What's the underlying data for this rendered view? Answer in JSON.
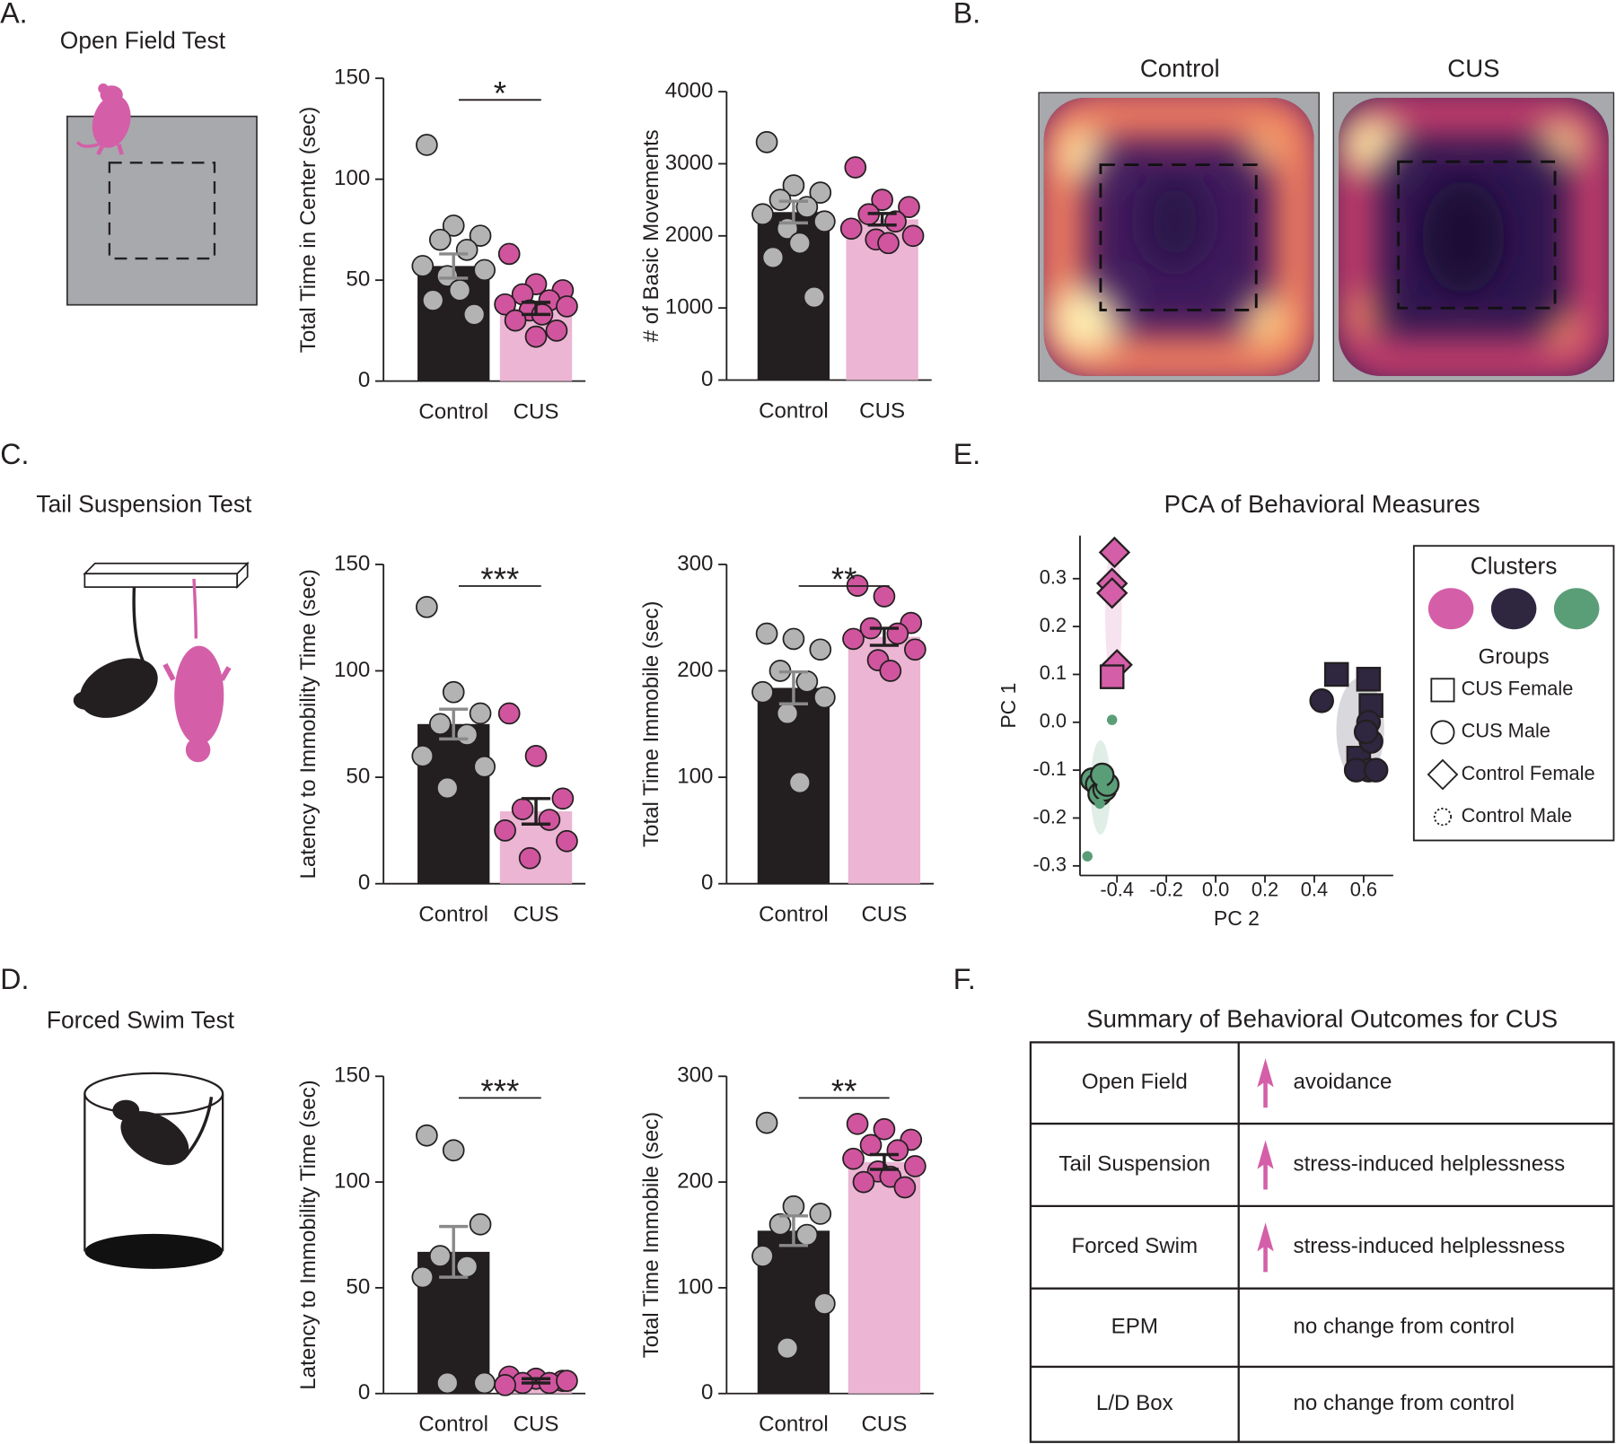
{
  "panels": {
    "labels": [
      "A.",
      "B.",
      "C.",
      "D.",
      "E.",
      "F."
    ],
    "tests": [
      "Open Field Test",
      "Tail Suspension Test",
      "Forced Swim Test"
    ]
  },
  "heatmaps": {
    "titles": [
      "Control",
      "CUS"
    ]
  },
  "chart_data": [
    {
      "type": "bar",
      "ylabel": "Total Time in Center (sec)",
      "categories": [
        "Control",
        "CUS"
      ],
      "values": [
        57,
        36
      ],
      "errors": [
        6,
        3
      ],
      "points": [
        [
          117,
          77,
          72,
          70,
          65,
          57,
          55,
          52,
          45,
          40,
          33
        ],
        [
          63,
          48,
          45,
          43,
          40,
          38,
          37,
          35,
          33,
          30,
          25,
          22
        ]
      ],
      "colors": [
        "#231f20",
        "#ebb5d3"
      ],
      "point_colors": [
        "#b3b3b3",
        "#d0559e"
      ],
      "error_colors": [
        "#8a8a8a",
        "#231f20"
      ],
      "ylim": [
        0,
        150
      ],
      "yticks": [
        0,
        50,
        100,
        150
      ],
      "significance": "*"
    },
    {
      "type": "bar",
      "ylabel": "# of Basic Movements",
      "categories": [
        "Control",
        "CUS"
      ],
      "values": [
        2330,
        2230
      ],
      "errors": [
        150,
        80
      ],
      "points": [
        [
          3300,
          2700,
          2600,
          2500,
          2400,
          2300,
          2200,
          2100,
          1900,
          1700,
          1150
        ],
        [
          2950,
          2500,
          2400,
          2300,
          2200,
          2100,
          2000,
          1950,
          1900
        ]
      ],
      "colors": [
        "#231f20",
        "#ebb5d3"
      ],
      "point_colors": [
        "#b3b3b3",
        "#d0559e"
      ],
      "error_colors": [
        "#8a8a8a",
        "#231f20"
      ],
      "ylim": [
        0,
        4000
      ],
      "yticks": [
        0,
        1000,
        2000,
        3000,
        4000
      ]
    },
    {
      "type": "bar",
      "ylabel": "Latency to Immobility Time (sec)",
      "categories": [
        "Control",
        "CUS"
      ],
      "values": [
        75,
        34
      ],
      "errors": [
        7,
        6
      ],
      "points": [
        [
          130,
          90,
          80,
          75,
          70,
          60,
          55,
          45
        ],
        [
          80,
          60,
          40,
          35,
          30,
          25,
          20,
          12
        ]
      ],
      "colors": [
        "#231f20",
        "#ebb5d3"
      ],
      "point_colors": [
        "#b3b3b3",
        "#d0559e"
      ],
      "error_colors": [
        "#8a8a8a",
        "#231f20"
      ],
      "ylim": [
        0,
        150
      ],
      "yticks": [
        0,
        50,
        100,
        150
      ],
      "significance": "***"
    },
    {
      "type": "bar",
      "ylabel": "Total Time Immobile (sec)",
      "categories": [
        "Control",
        "CUS"
      ],
      "values": [
        184,
        232
      ],
      "errors": [
        15,
        8
      ],
      "points": [
        [
          235,
          230,
          220,
          200,
          190,
          180,
          175,
          160,
          95
        ],
        [
          280,
          270,
          245,
          240,
          235,
          230,
          220,
          210,
          200
        ]
      ],
      "colors": [
        "#231f20",
        "#ebb5d3"
      ],
      "point_colors": [
        "#b3b3b3",
        "#d0559e"
      ],
      "error_colors": [
        "#8a8a8a",
        "#231f20"
      ],
      "ylim": [
        0,
        300
      ],
      "yticks": [
        0,
        100,
        200,
        300
      ],
      "significance": "**"
    },
    {
      "type": "bar",
      "ylabel": "Latency to Immobility Time (sec)",
      "categories": [
        "Control",
        "CUS"
      ],
      "values": [
        67,
        6
      ],
      "errors": [
        12,
        1
      ],
      "points": [
        [
          122,
          115,
          80,
          65,
          60,
          55,
          5,
          5
        ],
        [
          8,
          7,
          6,
          5,
          5,
          4,
          6
        ]
      ],
      "colors": [
        "#231f20",
        "#ebb5d3"
      ],
      "point_colors": [
        "#b3b3b3",
        "#d0559e"
      ],
      "error_colors": [
        "#8a8a8a",
        "#231f20"
      ],
      "ylim": [
        0,
        150
      ],
      "yticks": [
        0,
        50,
        100,
        150
      ],
      "significance": "***"
    },
    {
      "type": "bar",
      "ylabel": "Total Time Immobile (sec)",
      "categories": [
        "Control",
        "CUS"
      ],
      "values": [
        154,
        219
      ],
      "errors": [
        14,
        7
      ],
      "points": [
        [
          256,
          177,
          170,
          160,
          150,
          130,
          85,
          43
        ],
        [
          255,
          250,
          240,
          235,
          230,
          222,
          215,
          210,
          205,
          200,
          195
        ]
      ],
      "colors": [
        "#231f20",
        "#ebb5d3"
      ],
      "point_colors": [
        "#b3b3b3",
        "#d0559e"
      ],
      "error_colors": [
        "#8a8a8a",
        "#231f20"
      ],
      "ylim": [
        0,
        300
      ],
      "yticks": [
        0,
        100,
        200,
        300
      ],
      "significance": "**"
    },
    {
      "type": "scatter",
      "title": "PCA of Behavioral Measures",
      "xlabel": "PC 2",
      "ylabel": "PC 1",
      "xlim": [
        -0.55,
        0.72
      ],
      "ylim": [
        -0.32,
        0.39
      ],
      "xticks": [
        -0.4,
        -0.2,
        {
          "value": 0,
          "label": "0.0"
        },
        0.2,
        0.4,
        0.6
      ],
      "yticks": [
        -0.3,
        -0.2,
        -0.1,
        {
          "value": 0,
          "label": "0.0"
        },
        0.1,
        0.2,
        0.3
      ],
      "cluster_colors": [
        "#d45fa8",
        "#2f2640",
        "#5a9e78"
      ],
      "legend": {
        "clusters_title": "Clusters",
        "groups_title": "Groups",
        "groups": [
          {
            "name": "CUS Female",
            "marker": "square"
          },
          {
            "name": "CUS Male",
            "marker": "circle"
          },
          {
            "name": "Control Female",
            "marker": "diamond"
          },
          {
            "name": "Control Male",
            "marker": "dotted-circle"
          }
        ]
      },
      "series": [
        {
          "cluster": 0,
          "group": 2,
          "x": [
            -0.41,
            -0.42,
            -0.42,
            -0.4
          ],
          "y": [
            0.355,
            0.29,
            0.27,
            0.12
          ]
        },
        {
          "cluster": 0,
          "group": 0,
          "x": [
            -0.42
          ],
          "y": [
            0.095
          ]
        },
        {
          "cluster": 1,
          "group": 0,
          "x": [
            0.49,
            0.62,
            0.63,
            0.58
          ],
          "y": [
            0.1,
            0.09,
            0.035,
            -0.075
          ]
        },
        {
          "cluster": 1,
          "group": 1,
          "x": [
            0.43,
            0.62,
            0.63,
            0.62,
            0.57,
            0.65,
            0.61
          ],
          "y": [
            0.045,
            0.0,
            -0.04,
            -0.1,
            -0.1,
            -0.1,
            -0.02
          ]
        },
        {
          "cluster": 2,
          "group": 1,
          "x": [
            -0.5,
            -0.48,
            -0.47,
            -0.45,
            -0.44,
            -0.46
          ],
          "y": [
            -0.12,
            -0.13,
            -0.15,
            -0.14,
            -0.13,
            -0.11
          ]
        },
        {
          "cluster": 2,
          "group": 3,
          "x": [
            -0.42,
            -0.47,
            -0.52,
            -0.46
          ],
          "y": [
            0.005,
            -0.17,
            -0.28,
            -0.135
          ]
        }
      ]
    }
  ],
  "table": {
    "title": "Summary of Behavioral Outcomes for CUS",
    "rows": [
      {
        "test": "Open Field",
        "outcome": "avoidance",
        "increase": true
      },
      {
        "test": "Tail Suspension",
        "outcome": "stress-induced helplessness",
        "increase": true
      },
      {
        "test": "Forced Swim",
        "outcome": "stress-induced helplessness",
        "increase": true
      },
      {
        "test": "EPM",
        "outcome": "no change from control",
        "increase": false
      },
      {
        "test": "L/D Box",
        "outcome": "no change from control",
        "increase": false
      }
    ]
  }
}
